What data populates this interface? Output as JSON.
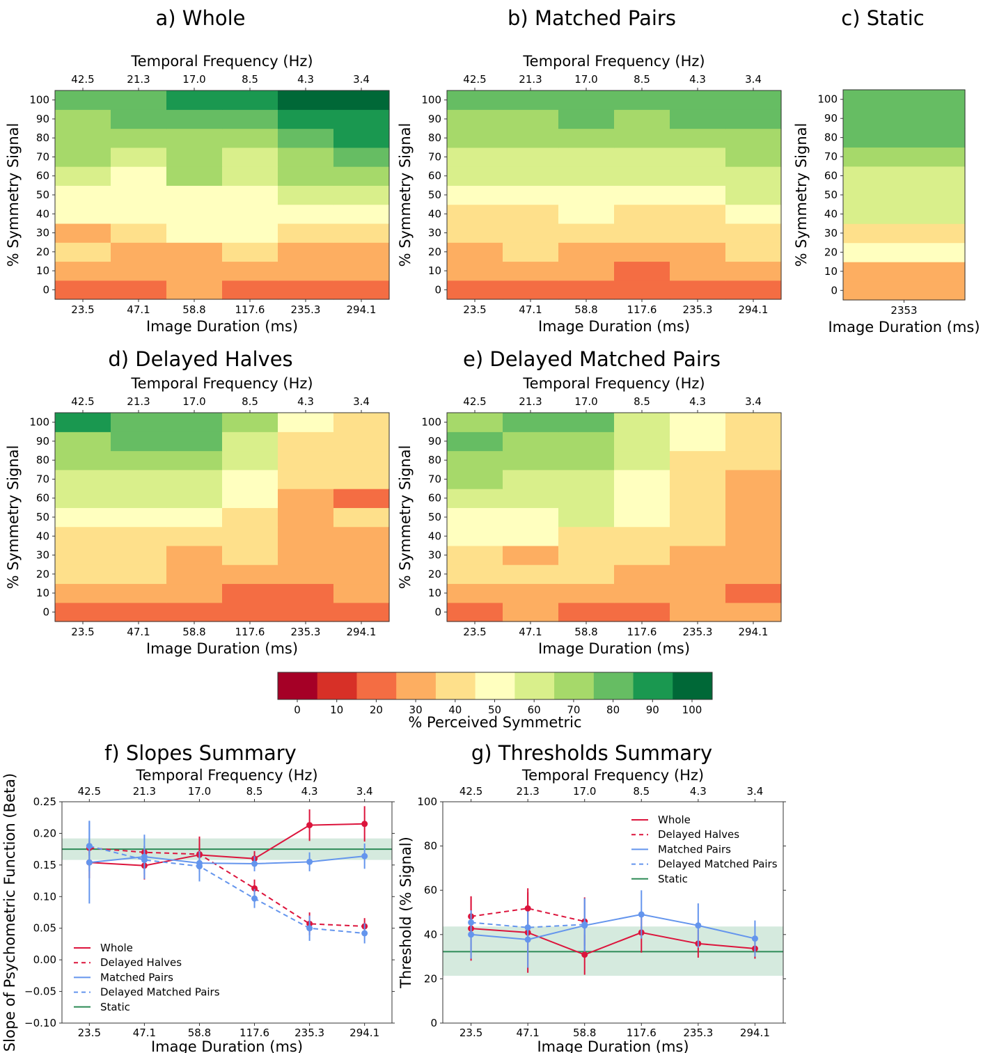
{
  "figure": {
    "colorbar": {
      "label": "% Perceived Symmetric",
      "ticks": [
        "0",
        "10",
        "20",
        "30",
        "40",
        "50",
        "60",
        "70",
        "80",
        "90",
        "100"
      ],
      "colors": [
        "#a50026",
        "#d73027",
        "#f46d43",
        "#fdae61",
        "#fee08b",
        "#ffffbf",
        "#d9ef8b",
        "#a6d96a",
        "#66bd63",
        "#1a9850",
        "#006837"
      ]
    },
    "legend": {
      "whole": "Whole",
      "delayed_halves": "Delayed Halves",
      "matched_pairs": "Matched Pairs",
      "delayed_matched_pairs": "Delayed Matched Pairs",
      "static": "Static"
    },
    "colors": {
      "whole": "#dc143c",
      "matched": "#6495ed",
      "static": "#2e8b57",
      "static_band": "#b2d8c2"
    }
  },
  "chart_data": [
    {
      "type": "heatmap",
      "id": "a",
      "title": "a) Whole",
      "xlabel": "Image Duration (ms)",
      "x2label": "Temporal Frequency (Hz)",
      "ylabel": "% Symmetry Signal",
      "x": [
        "23.5",
        "47.1",
        "58.8",
        "117.6",
        "235.3",
        "294.1"
      ],
      "x2": [
        "42.5",
        "21.3",
        "17.0",
        "8.5",
        "4.3",
        "3.4"
      ],
      "y": [
        "0",
        "10",
        "20",
        "30",
        "40",
        "50",
        "60",
        "70",
        "80",
        "90",
        "100"
      ],
      "z": [
        [
          20,
          20,
          27,
          21,
          20,
          22
        ],
        [
          28,
          30,
          31,
          25,
          25,
          26
        ],
        [
          35,
          32,
          31,
          35,
          33,
          33
        ],
        [
          32,
          40,
          46,
          47,
          38,
          38
        ],
        [
          45,
          47,
          47,
          48,
          46,
          45
        ],
        [
          53,
          51,
          53,
          48,
          60,
          61
        ],
        [
          55,
          49,
          66,
          57,
          67,
          67
        ],
        [
          65,
          63,
          70,
          64,
          70,
          76
        ],
        [
          67,
          71,
          73,
          70,
          82,
          89
        ],
        [
          74,
          75,
          84,
          77,
          91,
          90
        ],
        [
          80,
          84,
          90,
          88,
          96,
          96
        ]
      ]
    },
    {
      "type": "heatmap",
      "id": "b",
      "title": "b) Matched Pairs",
      "xlabel": "Image Duration (ms)",
      "x2label": "Temporal Frequency (Hz)",
      "ylabel": "% Symmetry Signal",
      "x": [
        "23.5",
        "47.1",
        "58.8",
        "117.6",
        "235.3",
        "294.1"
      ],
      "x2": [
        "42.5",
        "21.3",
        "17.0",
        "8.5",
        "4.3",
        "3.4"
      ],
      "y": [
        "0",
        "10",
        "20",
        "30",
        "40",
        "50",
        "60",
        "70",
        "80",
        "90",
        "100"
      ],
      "z": [
        [
          19,
          20,
          20,
          16,
          18,
          20
        ],
        [
          33,
          33,
          30,
          24,
          28,
          33
        ],
        [
          26,
          39,
          34,
          33,
          31,
          37
        ],
        [
          37,
          44,
          37,
          36,
          40,
          42
        ],
        [
          41,
          44,
          46,
          41,
          39,
          53
        ],
        [
          48,
          53,
          54,
          49,
          49,
          60
        ],
        [
          56,
          57,
          57,
          55,
          57,
          62
        ],
        [
          63,
          62,
          64,
          63,
          63,
          68
        ],
        [
          70,
          67,
          67,
          67,
          66,
          72
        ],
        [
          74,
          72,
          75,
          70,
          78,
          80
        ],
        [
          78,
          78,
          79,
          75,
          78,
          82
        ]
      ]
    },
    {
      "type": "heatmap",
      "id": "c",
      "title": "c) Static",
      "xlabel": "Image Duration (ms)",
      "ylabel": "% Symmetry Signal",
      "x": [
        "2353"
      ],
      "y": [
        "0",
        "10",
        "20",
        "30",
        "40",
        "50",
        "60",
        "70",
        "80",
        "90",
        "100"
      ],
      "z": [
        [
          25
        ],
        [
          30
        ],
        [
          46
        ],
        [
          42
        ],
        [
          56
        ],
        [
          58
        ],
        [
          64
        ],
        [
          68
        ],
        [
          76
        ],
        [
          78
        ],
        [
          78
        ]
      ]
    },
    {
      "type": "heatmap",
      "id": "d",
      "title": "d) Delayed Halves",
      "xlabel": "Image Duration (ms)",
      "x2label": "Temporal Frequency (Hz)",
      "ylabel": "% Symmetry Signal",
      "x": [
        "23.5",
        "47.1",
        "58.8",
        "117.6",
        "235.3",
        "294.1"
      ],
      "x2": [
        "42.5",
        "21.3",
        "17.0",
        "8.5",
        "4.3",
        "3.4"
      ],
      "y": [
        "0",
        "10",
        "20",
        "30",
        "40",
        "50",
        "60",
        "70",
        "80",
        "90",
        "100"
      ],
      "z": [
        [
          16,
          19,
          19,
          21,
          23,
          16
        ],
        [
          30,
          26,
          31,
          23,
          20,
          25
        ],
        [
          35,
          35,
          31,
          32,
          30,
          31
        ],
        [
          41,
          37,
          34,
          37,
          29,
          31
        ],
        [
          43,
          42,
          44,
          37,
          30,
          25
        ],
        [
          51,
          48,
          50,
          41,
          32,
          37
        ],
        [
          59,
          58,
          60,
          47,
          34,
          24
        ],
        [
          63,
          64,
          60,
          48,
          36,
          38
        ],
        [
          72,
          70,
          66,
          59,
          39,
          42
        ],
        [
          72,
          76,
          76,
          62,
          42,
          42
        ],
        [
          85,
          79,
          77,
          70,
          45,
          43
        ]
      ]
    },
    {
      "type": "heatmap",
      "id": "e",
      "title": "e) Delayed Matched Pairs",
      "xlabel": "Image Duration (ms)",
      "x2label": "Temporal Frequency (Hz)",
      "ylabel": "% Symmetry Signal",
      "x": [
        "23.5",
        "47.1",
        "58.8",
        "117.6",
        "235.3",
        "294.1"
      ],
      "x2": [
        "42.5",
        "21.3",
        "17.0",
        "8.5",
        "4.3",
        "3.4"
      ],
      "y": [
        "0",
        "10",
        "20",
        "30",
        "40",
        "50",
        "60",
        "70",
        "80",
        "90",
        "100"
      ],
      "z": [
        [
          22,
          26,
          17,
          24,
          28,
          25
        ],
        [
          27,
          28,
          29,
          29,
          33,
          24
        ],
        [
          37,
          38,
          38,
          32,
          30,
          27
        ],
        [
          40,
          34,
          42,
          38,
          33,
          30
        ],
        [
          45,
          46,
          43,
          41,
          36,
          29
        ],
        [
          52,
          54,
          56,
          49,
          38,
          29
        ],
        [
          59,
          56,
          57,
          49,
          41,
          34
        ],
        [
          67,
          63,
          60,
          51,
          36,
          31
        ],
        [
          70,
          69,
          68,
          56,
          43,
          37
        ],
        [
          80,
          70,
          70,
          61,
          45,
          42
        ],
        [
          72,
          75,
          75,
          64,
          48,
          40
        ]
      ]
    },
    {
      "type": "line",
      "id": "f",
      "title": "f) Slopes Summary",
      "xlabel": "Image Duration (ms)",
      "x2label": "Temporal Frequency (Hz)",
      "ylabel": "Slope of Psychometric Function (Beta)",
      "categories": [
        "23.5",
        "47.1",
        "58.8",
        "117.6",
        "235.3",
        "294.1"
      ],
      "x2": [
        "42.5",
        "21.3",
        "17.0",
        "8.5",
        "4.3",
        "3.4"
      ],
      "ylim": [
        -0.1,
        0.25
      ],
      "yticks": [
        "−0.10",
        "−0.05",
        "0.00",
        "0.05",
        "0.10",
        "0.15",
        "0.20",
        "0.25"
      ],
      "legend_position": "lower-left",
      "static": {
        "value": 0.175,
        "band": [
          0.158,
          0.192
        ]
      },
      "series": [
        {
          "name": "Whole",
          "key": "whole",
          "values": [
            0.154,
            0.149,
            0.166,
            0.16,
            0.213,
            0.215
          ],
          "err": [
            0.025,
            0.022,
            0.018,
            0.012,
            0.025,
            0.028
          ]
        },
        {
          "name": "Delayed Halves",
          "key": "delayed_halves",
          "values": [
            0.177,
            0.17,
            0.167,
            0.113,
            0.057,
            0.053
          ],
          "err": [
            0.012,
            0.01,
            0.028,
            0.014,
            0.018,
            0.013
          ]
        },
        {
          "name": "Matched Pairs",
          "key": "matched_pairs",
          "values": [
            0.154,
            0.163,
            0.153,
            0.152,
            0.155,
            0.164
          ],
          "err": [
            0.065,
            0.035,
            0.012,
            0.012,
            0.015,
            0.02
          ]
        },
        {
          "name": "Delayed Matched Pairs",
          "key": "delayed_matched_pairs",
          "values": [
            0.18,
            0.158,
            0.148,
            0.097,
            0.05,
            0.042
          ],
          "err": [
            0.04,
            0.022,
            0.024,
            0.015,
            0.02,
            0.016
          ]
        }
      ]
    },
    {
      "type": "line",
      "id": "g",
      "title": "g) Thresholds Summary",
      "xlabel": "Image Duration (ms)",
      "x2label": "Temporal Frequency (Hz)",
      "ylabel": "Threshold (% Signal)",
      "categories": [
        "23.5",
        "47.1",
        "58.8",
        "117.6",
        "235.3",
        "294.1"
      ],
      "x2": [
        "42.5",
        "21.3",
        "17.0",
        "8.5",
        "4.3",
        "3.4"
      ],
      "ylim": [
        0,
        110
      ],
      "yticks": [
        "0",
        "20",
        "40",
        "60",
        "80",
        "100"
      ],
      "legend_position": "upper-right",
      "static": {
        "value": 35.5,
        "band": [
          23.5,
          48
        ]
      },
      "series": [
        {
          "name": "Whole",
          "key": "whole",
          "values": [
            47,
            45,
            34,
            45,
            39.5,
            37
          ],
          "err": [
            16,
            20,
            10,
            10,
            7,
            5
          ]
        },
        {
          "name": "Delayed Halves",
          "key": "delayed_halves",
          "values": [
            53,
            57,
            50.5,
            null,
            null,
            null
          ],
          "err": [
            10,
            10,
            12,
            0,
            0,
            0
          ]
        },
        {
          "name": "Matched Pairs",
          "key": "matched_pairs",
          "values": [
            44,
            41.5,
            48.5,
            54,
            48.5,
            42
          ],
          "err": [
            12,
            14,
            13,
            12,
            11,
            9
          ]
        },
        {
          "name": "Delayed Matched Pairs",
          "key": "delayed_matched_pairs",
          "values": [
            50,
            47.5,
            49,
            null,
            null,
            null
          ],
          "err": [
            6,
            7,
            13,
            0,
            0,
            0
          ]
        }
      ]
    }
  ]
}
